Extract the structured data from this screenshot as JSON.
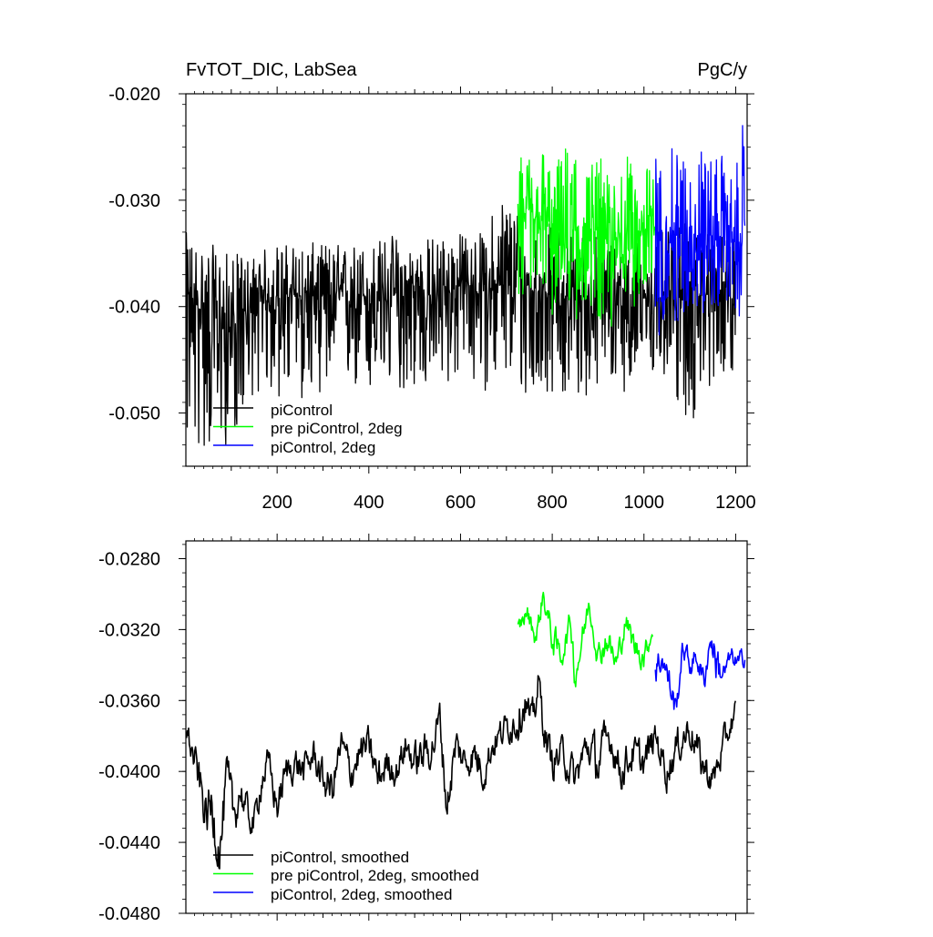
{
  "colors": {
    "piControl": "#000000",
    "pre_piControl_2deg": "#00ff00",
    "piControl_2deg": "#0000ff",
    "axis": "#000000",
    "background": "#ffffff"
  },
  "chart_data": [
    {
      "type": "line",
      "title_left": "FvTOT_DIC, LabSea",
      "title_right": "PgC/y",
      "xlim": [
        1,
        1225
      ],
      "ylim": [
        -0.055,
        -0.02
      ],
      "xticks": [
        200,
        400,
        600,
        800,
        1000,
        1200
      ],
      "xtick_labels": [
        "200",
        "400",
        "600",
        "800",
        "1000",
        "1200"
      ],
      "yticks": [
        -0.02,
        -0.03,
        -0.04,
        -0.05
      ],
      "ytick_labels": [
        "-0.020",
        "-0.030",
        "-0.040",
        "-0.050"
      ],
      "grid": false,
      "legend_position": "bottom-left",
      "series": [
        {
          "name": "piControl",
          "color": "#000000",
          "x": [
            1,
            50,
            100,
            150,
            200,
            250,
            300,
            350,
            400,
            450,
            500,
            550,
            600,
            650,
            700,
            750,
            800,
            850,
            900,
            950,
            1000,
            1050,
            1100,
            1150,
            1200
          ],
          "y": [
            -0.039,
            -0.041,
            -0.042,
            -0.04,
            -0.039,
            -0.039,
            -0.039,
            -0.039,
            -0.039,
            -0.039,
            -0.039,
            -0.039,
            -0.038,
            -0.038,
            -0.038,
            -0.038,
            -0.039,
            -0.039,
            -0.039,
            -0.039,
            -0.039,
            -0.039,
            -0.039,
            -0.039,
            -0.038
          ],
          "y_min": [
            -0.054,
            -0.054,
            -0.053,
            -0.048,
            -0.049,
            -0.049,
            -0.048,
            -0.048,
            -0.049,
            -0.048,
            -0.048,
            -0.048,
            -0.047,
            -0.048,
            -0.047,
            -0.05,
            -0.048,
            -0.049,
            -0.048,
            -0.048,
            -0.048,
            -0.047,
            -0.052,
            -0.047,
            -0.046
          ],
          "y_max": [
            -0.033,
            -0.034,
            -0.035,
            -0.035,
            -0.034,
            -0.034,
            -0.034,
            -0.034,
            -0.034,
            -0.033,
            -0.034,
            -0.033,
            -0.033,
            -0.033,
            -0.028,
            -0.033,
            -0.032,
            -0.033,
            -0.033,
            -0.033,
            -0.033,
            -0.033,
            -0.032,
            -0.033,
            -0.034
          ]
        },
        {
          "name": "pre piControl, 2deg",
          "color": "#00ff00",
          "x": [
            725,
            750,
            775,
            800,
            825,
            850,
            875,
            900,
            925,
            950,
            975,
            1000,
            1025
          ],
          "y": [
            -0.032,
            -0.032,
            -0.032,
            -0.033,
            -0.033,
            -0.033,
            -0.033,
            -0.033,
            -0.034,
            -0.033,
            -0.033,
            -0.033,
            -0.032
          ],
          "y_min": [
            -0.039,
            -0.04,
            -0.039,
            -0.041,
            -0.04,
            -0.042,
            -0.04,
            -0.041,
            -0.044,
            -0.04,
            -0.04,
            -0.04,
            -0.039
          ],
          "y_max": [
            -0.026,
            -0.025,
            -0.024,
            -0.027,
            -0.025,
            -0.023,
            -0.027,
            -0.025,
            -0.028,
            -0.024,
            -0.027,
            -0.026,
            -0.028
          ]
        },
        {
          "name": "piControl, 2deg",
          "color": "#0000ff",
          "x": [
            1025,
            1050,
            1075,
            1100,
            1125,
            1150,
            1175,
            1200,
            1220
          ],
          "y": [
            -0.033,
            -0.034,
            -0.034,
            -0.034,
            -0.033,
            -0.034,
            -0.033,
            -0.034,
            -0.033
          ],
          "y_min": [
            -0.046,
            -0.04,
            -0.042,
            -0.04,
            -0.041,
            -0.041,
            -0.04,
            -0.041,
            -0.042
          ],
          "y_max": [
            -0.025,
            -0.026,
            -0.024,
            -0.026,
            -0.025,
            -0.025,
            -0.026,
            -0.027,
            -0.021
          ]
        }
      ],
      "legend": [
        "piControl",
        "pre piControl, 2deg",
        "piControl, 2deg"
      ]
    },
    {
      "type": "line",
      "xlim": [
        1,
        1225
      ],
      "ylim": [
        -0.048,
        -0.027
      ],
      "xticks": [
        200,
        400,
        600,
        800,
        1000,
        1200
      ],
      "yticks": [
        -0.028,
        -0.032,
        -0.036,
        -0.04,
        -0.044,
        -0.048
      ],
      "ytick_labels": [
        "-0.0280",
        "-0.0320",
        "-0.0360",
        "-0.0400",
        "-0.0440",
        "-0.0480"
      ],
      "grid": false,
      "legend_position": "bottom-left",
      "series": [
        {
          "name": "piControl, smoothed",
          "color": "#000000",
          "x": [
            1,
            15,
            30,
            45,
            60,
            75,
            90,
            105,
            120,
            135,
            150,
            165,
            180,
            200,
            220,
            240,
            260,
            280,
            300,
            320,
            340,
            360,
            380,
            400,
            420,
            440,
            460,
            480,
            500,
            520,
            540,
            555,
            570,
            590,
            610,
            630,
            650,
            670,
            700,
            725,
            740,
            755,
            770,
            785,
            800,
            825,
            850,
            875,
            900,
            925,
            950,
            975,
            1000,
            1025,
            1050,
            1075,
            1100,
            1125,
            1150,
            1175,
            1200
          ],
          "y": [
            -0.0375,
            -0.039,
            -0.0405,
            -0.0425,
            -0.042,
            -0.0445,
            -0.0405,
            -0.0425,
            -0.041,
            -0.0425,
            -0.043,
            -0.0405,
            -0.0395,
            -0.042,
            -0.04,
            -0.0395,
            -0.04,
            -0.039,
            -0.0405,
            -0.041,
            -0.0385,
            -0.04,
            -0.039,
            -0.0385,
            -0.0405,
            -0.0395,
            -0.04,
            -0.0385,
            -0.0395,
            -0.039,
            -0.0385,
            -0.037,
            -0.042,
            -0.0385,
            -0.0395,
            -0.039,
            -0.04,
            -0.0385,
            -0.0375,
            -0.037,
            -0.036,
            -0.0375,
            -0.035,
            -0.038,
            -0.0395,
            -0.039,
            -0.0405,
            -0.0385,
            -0.0395,
            -0.038,
            -0.04,
            -0.039,
            -0.0395,
            -0.038,
            -0.04,
            -0.0385,
            -0.0375,
            -0.0395,
            -0.0405,
            -0.0385,
            -0.0365
          ],
          "y_min": [
            -0.04,
            -0.041,
            -0.043,
            -0.0445,
            -0.045,
            -0.0455,
            -0.0435,
            -0.044,
            -0.043,
            -0.0435,
            -0.0435,
            -0.042,
            -0.041,
            -0.043,
            -0.0415,
            -0.041,
            -0.0415,
            -0.0405,
            -0.042,
            -0.043,
            -0.0405,
            -0.042,
            -0.041,
            -0.0405,
            -0.0425,
            -0.041,
            -0.0415,
            -0.0405,
            -0.0415,
            -0.0415,
            -0.041,
            -0.0395,
            -0.044,
            -0.0405,
            -0.041,
            -0.041,
            -0.042,
            -0.0405,
            -0.0395,
            -0.04,
            -0.0395,
            -0.04,
            -0.039,
            -0.0405,
            -0.0415,
            -0.041,
            -0.0425,
            -0.041,
            -0.043,
            -0.0405,
            -0.042,
            -0.041,
            -0.0415,
            -0.04,
            -0.042,
            -0.0405,
            -0.04,
            -0.0415,
            -0.042,
            -0.0405,
            -0.0385
          ],
          "y_max": [
            -0.037,
            -0.0375,
            -0.0385,
            -0.0395,
            -0.038,
            -0.0395,
            -0.038,
            -0.039,
            -0.0385,
            -0.0395,
            -0.04,
            -0.038,
            -0.0375,
            -0.039,
            -0.038,
            -0.0375,
            -0.0375,
            -0.037,
            -0.038,
            -0.0385,
            -0.037,
            -0.0375,
            -0.037,
            -0.037,
            -0.038,
            -0.0375,
            -0.038,
            -0.037,
            -0.0375,
            -0.037,
            -0.0365,
            -0.0355,
            -0.0395,
            -0.0365,
            -0.0375,
            -0.037,
            -0.038,
            -0.037,
            -0.036,
            -0.0355,
            -0.035,
            -0.036,
            -0.0345,
            -0.0365,
            -0.0375,
            -0.037,
            -0.0385,
            -0.037,
            -0.0375,
            -0.0365,
            -0.038,
            -0.037,
            -0.0375,
            -0.0365,
            -0.038,
            -0.0365,
            -0.036,
            -0.0375,
            -0.0385,
            -0.037,
            -0.036
          ]
        },
        {
          "name": "pre piControl, 2deg, smoothed",
          "color": "#00ff00",
          "x": [
            725,
            745,
            765,
            780,
            800,
            820,
            840,
            850,
            870,
            880,
            900,
            920,
            940,
            960,
            980,
            1000,
            1020
          ],
          "y": [
            -0.032,
            -0.031,
            -0.0325,
            -0.03,
            -0.0325,
            -0.0335,
            -0.0315,
            -0.0345,
            -0.032,
            -0.0305,
            -0.0335,
            -0.0325,
            -0.034,
            -0.0315,
            -0.033,
            -0.0335,
            -0.032
          ],
          "y_min": [
            -0.033,
            -0.032,
            -0.0335,
            -0.0315,
            -0.0345,
            -0.035,
            -0.033,
            -0.0375,
            -0.034,
            -0.032,
            -0.035,
            -0.0345,
            -0.0355,
            -0.033,
            -0.0345,
            -0.035,
            -0.033
          ],
          "y_max": [
            -0.031,
            -0.03,
            -0.031,
            -0.0292,
            -0.031,
            -0.032,
            -0.0305,
            -0.033,
            -0.031,
            -0.03,
            -0.032,
            -0.031,
            -0.0325,
            -0.0305,
            -0.0315,
            -0.032,
            -0.0315
          ]
        },
        {
          "name": "piControl, 2deg, smoothed",
          "color": "#0000ff",
          "x": [
            1025,
            1040,
            1055,
            1070,
            1085,
            1100,
            1115,
            1130,
            1145,
            1160,
            1175,
            1190,
            1205,
            1220
          ],
          "y": [
            -0.0345,
            -0.0335,
            -0.035,
            -0.0365,
            -0.033,
            -0.034,
            -0.0335,
            -0.035,
            -0.0325,
            -0.034,
            -0.0345,
            -0.0335,
            -0.034,
            -0.0335
          ],
          "y_min": [
            -0.038,
            -0.0345,
            -0.037,
            -0.037,
            -0.034,
            -0.035,
            -0.0345,
            -0.037,
            -0.0335,
            -0.0375,
            -0.0355,
            -0.0345,
            -0.0355,
            -0.0345
          ],
          "y_max": [
            -0.0325,
            -0.032,
            -0.033,
            -0.034,
            -0.0315,
            -0.0325,
            -0.032,
            -0.0335,
            -0.0315,
            -0.032,
            -0.033,
            -0.0325,
            -0.033,
            -0.0325
          ]
        }
      ],
      "legend": [
        "piControl, smoothed",
        "pre piControl, 2deg, smoothed",
        "piControl, 2deg, smoothed"
      ]
    }
  ]
}
